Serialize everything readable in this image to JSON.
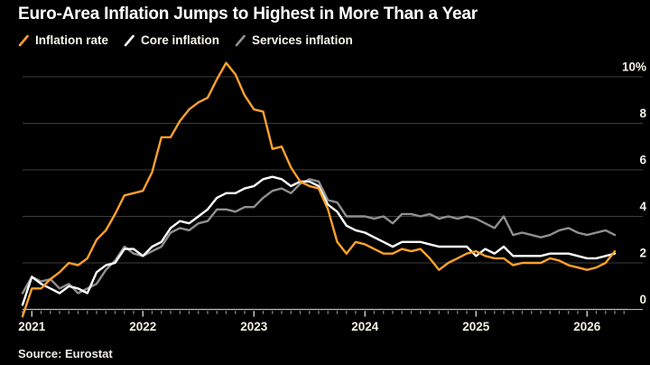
{
  "title": "Euro-Area Inflation Jumps to Highest in More Than a Year",
  "source": "Source: Eurostat",
  "colors": {
    "background": "#000000",
    "title_text": "#ffffff",
    "axis_text": "#f3f1e7",
    "grid": "#3d3d3d",
    "zero_line": "#bdbdb6",
    "month_tick": "#8a8a8a",
    "year_tick": "#e6e3da",
    "inflation_rate": "#ffa12c",
    "core_inflation": "#ffffff",
    "services_inflation": "#909090"
  },
  "legend": {
    "items": [
      {
        "label": "Inflation rate",
        "color": "#ffa12c"
      },
      {
        "label": "Core inflation",
        "color": "#ffffff"
      },
      {
        "label": "Services inflation",
        "color": "#909090"
      }
    ]
  },
  "chart_data": {
    "type": "line",
    "x_unit": "month",
    "x_start": "2020-12",
    "x_tick_labels": [
      "2021",
      "2022",
      "2023",
      "2024",
      "2025",
      "2026"
    ],
    "y_ticks": [
      0,
      2,
      4,
      6,
      8,
      10
    ],
    "y_tick_labels": [
      "0",
      "2",
      "4",
      "6",
      "8",
      "10%"
    ],
    "ylim": [
      -0.6,
      10.8
    ],
    "grid": true,
    "legend_position": "top-left",
    "series": [
      {
        "name": "Inflation rate",
        "color": "#ffa12c",
        "values": [
          -0.3,
          0.9,
          0.9,
          1.3,
          1.6,
          2.0,
          1.9,
          2.2,
          3.0,
          3.4,
          4.1,
          4.9,
          5.0,
          5.1,
          5.9,
          7.4,
          7.4,
          8.1,
          8.6,
          8.9,
          9.1,
          9.9,
          10.6,
          10.1,
          9.2,
          8.6,
          8.5,
          6.9,
          7.0,
          6.1,
          5.5,
          5.3,
          5.2,
          4.3,
          2.9,
          2.4,
          2.9,
          2.8,
          2.6,
          2.4,
          2.4,
          2.6,
          2.5,
          2.6,
          2.2,
          1.7,
          2.0,
          2.2,
          2.4,
          2.5,
          2.3,
          2.2,
          2.2,
          1.9,
          2.0,
          2.0,
          2.0,
          2.2,
          2.1,
          1.9,
          1.8,
          1.7,
          1.8,
          2.0,
          2.5
        ]
      },
      {
        "name": "Core inflation",
        "color": "#ffffff",
        "values": [
          0.2,
          1.4,
          1.1,
          0.9,
          0.7,
          1.0,
          0.9,
          0.7,
          1.6,
          1.9,
          2.0,
          2.6,
          2.6,
          2.3,
          2.7,
          2.9,
          3.5,
          3.8,
          3.7,
          4.0,
          4.3,
          4.8,
          5.0,
          5.0,
          5.2,
          5.3,
          5.6,
          5.7,
          5.6,
          5.3,
          5.5,
          5.5,
          5.3,
          4.5,
          4.2,
          3.6,
          3.4,
          3.3,
          3.1,
          2.9,
          2.7,
          2.9,
          2.9,
          2.9,
          2.8,
          2.7,
          2.7,
          2.7,
          2.7,
          2.3,
          2.6,
          2.4,
          2.7,
          2.3,
          2.3,
          2.3,
          2.3,
          2.4,
          2.4,
          2.4,
          2.3,
          2.2,
          2.2,
          2.3,
          2.4
        ]
      },
      {
        "name": "Services inflation",
        "color": "#909090",
        "values": [
          0.7,
          1.4,
          1.2,
          1.3,
          0.9,
          1.1,
          0.7,
          0.9,
          1.1,
          1.7,
          2.1,
          2.7,
          2.4,
          2.3,
          2.5,
          2.7,
          3.3,
          3.5,
          3.4,
          3.7,
          3.8,
          4.3,
          4.3,
          4.2,
          4.4,
          4.4,
          4.8,
          5.1,
          5.2,
          5.0,
          5.4,
          5.6,
          5.5,
          4.7,
          4.6,
          4.0,
          4.0,
          4.0,
          3.9,
          4.0,
          3.7,
          4.1,
          4.1,
          4.0,
          4.1,
          3.9,
          4.0,
          3.9,
          4.0,
          3.9,
          3.7,
          3.5,
          4.0,
          3.2,
          3.3,
          3.2,
          3.1,
          3.2,
          3.4,
          3.5,
          3.3,
          3.2,
          3.3,
          3.4,
          3.2
        ]
      }
    ]
  }
}
